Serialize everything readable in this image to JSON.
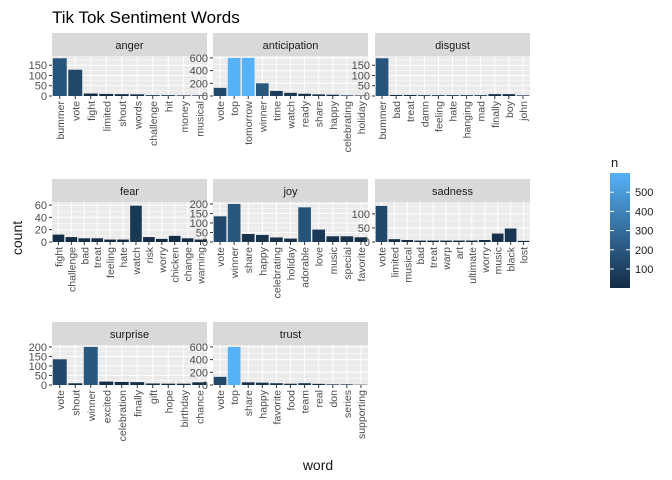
{
  "chart_data": {
    "type": "bar",
    "title": "Tik Tok Sentiment Words",
    "xlabel": "word",
    "ylabel": "count",
    "grid": true,
    "legend": {
      "title": "n",
      "placement": "right",
      "ticks": [
        100,
        200,
        300,
        400,
        500
      ],
      "range": [
        1,
        600
      ],
      "color_low": "#132B43",
      "color_high": "#56B1F7"
    },
    "panels": [
      {
        "label": "anger",
        "yticks": [
          0,
          50,
          100,
          150
        ],
        "ylim": [
          0,
          195
        ],
        "categories": [
          "bummer",
          "vote",
          "fight",
          "limited",
          "shout",
          "words",
          "challenge",
          "hit",
          "money",
          "musical"
        ],
        "values": [
          184,
          128,
          12,
          10,
          9,
          8,
          4,
          4,
          3,
          3
        ]
      },
      {
        "label": "anticipation",
        "yticks": [
          0,
          200,
          400,
          600
        ],
        "ylim": [
          0,
          630
        ],
        "categories": [
          "vote",
          "top",
          "tomorrow",
          "winner",
          "time",
          "watch",
          "ready",
          "share",
          "happy",
          "celebrating",
          "holiday"
        ],
        "values": [
          128,
          600,
          600,
          200,
          80,
          50,
          35,
          25,
          20,
          10,
          8
        ]
      },
      {
        "label": "disgust",
        "yticks": [
          0,
          50,
          100,
          150
        ],
        "ylim": [
          0,
          195
        ],
        "categories": [
          "bummer",
          "bad",
          "treat",
          "damn",
          "feeling",
          "hate",
          "hanging",
          "mad",
          "finally",
          "boy",
          "john"
        ],
        "values": [
          184,
          5,
          5,
          4,
          4,
          4,
          4,
          4,
          9,
          9,
          3
        ]
      },
      {
        "label": "fear",
        "yticks": [
          0,
          20,
          40,
          60
        ],
        "ylim": [
          0,
          65
        ],
        "categories": [
          "fight",
          "challenge",
          "bad",
          "treat",
          "feeling",
          "hate",
          "watch",
          "risk",
          "worry",
          "chicken",
          "change",
          "warning"
        ],
        "values": [
          12,
          8,
          6,
          6,
          4,
          4,
          59,
          8,
          5,
          10,
          6,
          4
        ]
      },
      {
        "label": "joy",
        "yticks": [
          0,
          50,
          100,
          150,
          200
        ],
        "ylim": [
          0,
          210
        ],
        "categories": [
          "vote",
          "winner",
          "share",
          "happy",
          "celebrating",
          "holiday",
          "adorable",
          "love",
          "music",
          "special",
          "favorite"
        ],
        "values": [
          135,
          200,
          42,
          37,
          24,
          18,
          182,
          65,
          30,
          30,
          25
        ]
      },
      {
        "label": "sadness",
        "yticks": [
          0,
          50,
          100
        ],
        "ylim": [
          0,
          142
        ],
        "categories": [
          "vote",
          "limited",
          "musical",
          "bad",
          "treat",
          "warp",
          "art",
          "ultimate",
          "worry",
          "music",
          "black",
          "lost"
        ],
        "values": [
          128,
          10,
          7,
          5,
          5,
          5,
          5,
          5,
          7,
          30,
          48,
          4
        ]
      },
      {
        "label": "surprise",
        "yticks": [
          0,
          50,
          100,
          150,
          200
        ],
        "ylim": [
          0,
          210
        ],
        "categories": [
          "vote",
          "shout",
          "winner",
          "excited",
          "celebration",
          "finally",
          "gift",
          "hope",
          "birthday",
          "chance"
        ],
        "values": [
          135,
          9,
          200,
          18,
          16,
          15,
          8,
          7,
          7,
          14
        ]
      },
      {
        "label": "trust",
        "yticks": [
          0,
          200,
          400,
          600
        ],
        "ylim": [
          0,
          630
        ],
        "categories": [
          "vote",
          "top",
          "share",
          "happy",
          "favorite",
          "food",
          "team",
          "real",
          "don",
          "series",
          "supporting"
        ],
        "values": [
          128,
          600,
          42,
          37,
          28,
          20,
          28,
          18,
          10,
          10,
          5
        ]
      }
    ]
  }
}
